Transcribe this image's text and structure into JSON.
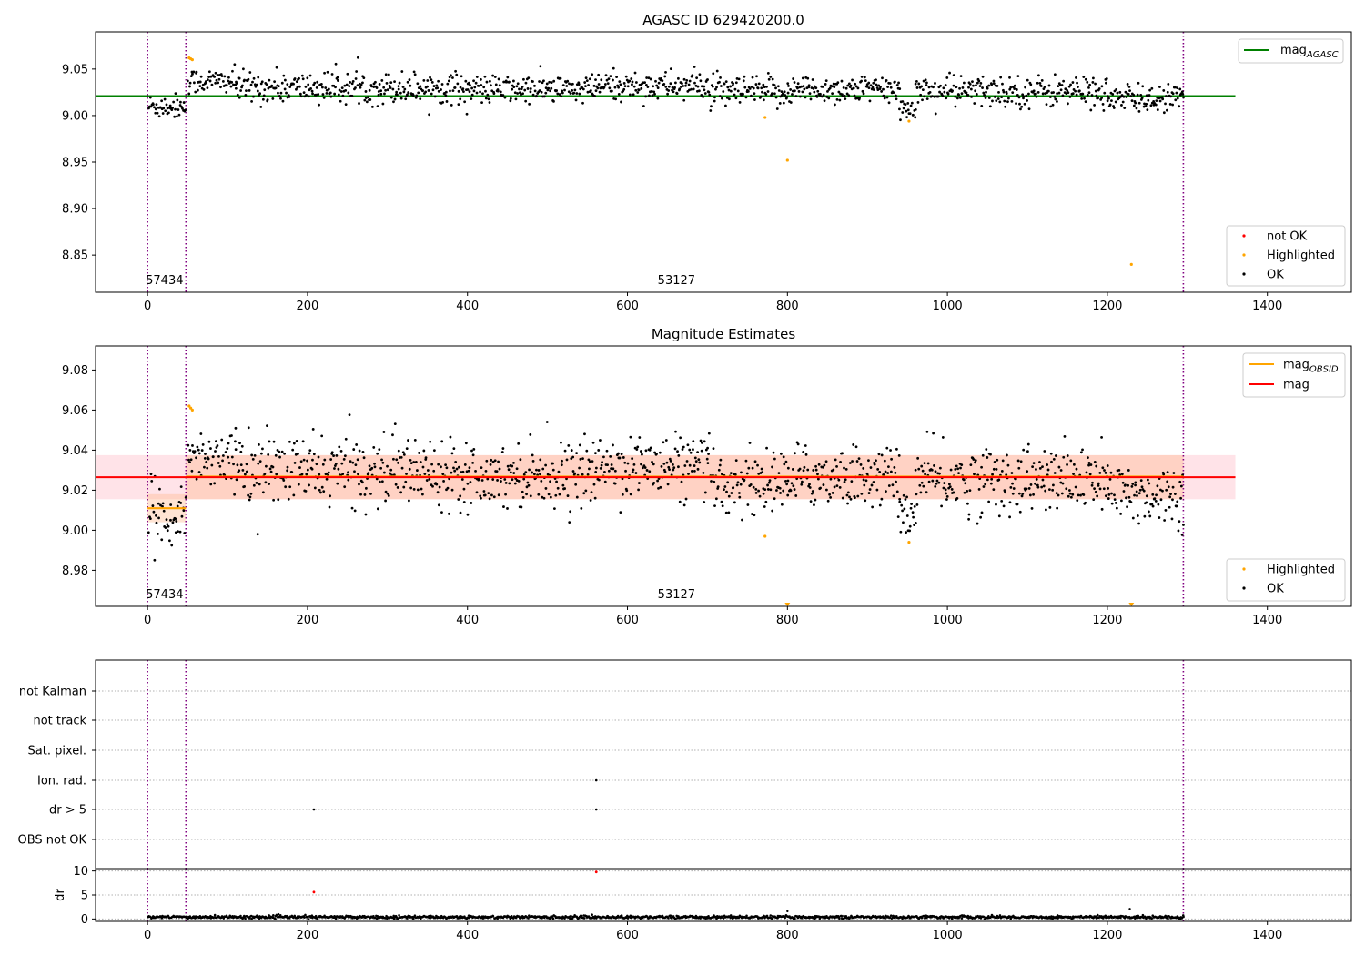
{
  "colors": {
    "ok": "#000000",
    "highlighted": "#ffa500",
    "not_ok": "#ff0000",
    "mag_agasc": "#008000",
    "mag": "#ff0000",
    "mag_obsid": "#ffa500",
    "band_mag": "#ffc0cb",
    "band_obsid": "#ffb380",
    "obs_boundary": "#800080",
    "grid": "#b0b0b0"
  },
  "chart_data": [
    {
      "type": "scatter",
      "title": "AGASC ID 629420200.0",
      "xlim": [
        -65,
        1505
      ],
      "ylim": [
        8.81,
        9.09
      ],
      "xticks": [
        0,
        200,
        400,
        600,
        800,
        1000,
        1200,
        1400
      ],
      "yticks": [
        8.85,
        8.9,
        8.95,
        9.0,
        9.05
      ],
      "ytick_labels": [
        "8.85",
        "8.90",
        "8.95",
        "9.00",
        "9.05"
      ],
      "obs_boundaries": [
        0,
        48,
        1295
      ],
      "obs_labels": [
        {
          "text": "57434",
          "x": 0
        },
        {
          "text": "53127",
          "x": 640
        }
      ],
      "mag_agasc": 9.021,
      "mag_agasc_xrange": [
        -65,
        1360
      ],
      "series": [
        {
          "name": "not OK",
          "points": []
        },
        {
          "name": "Highlighted",
          "points": [
            [
              52,
              9.062
            ],
            [
              54,
              9.061
            ],
            [
              56,
              9.06
            ],
            [
              772,
              8.998
            ],
            [
              800,
              8.952
            ],
            [
              952,
              8.994
            ],
            [
              1230,
              8.84
            ]
          ]
        },
        {
          "name": "OK",
          "segments": [
            {
              "x": [
                1,
                47
              ],
              "center": 9.01,
              "scatter": 0.008
            },
            {
              "x": [
                50,
                110
              ],
              "center": 9.037,
              "scatter": 0.008
            },
            {
              "x": [
                110,
                400
              ],
              "center": 9.03,
              "scatter": 0.01
            },
            {
              "x": [
                400,
                560
              ],
              "center": 9.028,
              "scatter": 0.009
            },
            {
              "x": [
                560,
                700
              ],
              "center": 9.032,
              "scatter": 0.009
            },
            {
              "x": [
                700,
                800
              ],
              "center": 9.025,
              "scatter": 0.01
            },
            {
              "x": [
                800,
                940
              ],
              "center": 9.028,
              "scatter": 0.009
            },
            {
              "x": [
                940,
                960
              ],
              "center": 9.008,
              "scatter": 0.006
            },
            {
              "x": [
                960,
                1200
              ],
              "center": 9.026,
              "scatter": 0.01
            },
            {
              "x": [
                1200,
                1295
              ],
              "center": 9.018,
              "scatter": 0.009
            }
          ]
        }
      ],
      "legend_lines": [
        {
          "label": "mag",
          "sub": "AGASC",
          "color_key": "mag_agasc"
        }
      ],
      "legend_points": [
        {
          "label": "not OK",
          "color_key": "not_ok"
        },
        {
          "label": "Highlighted",
          "color_key": "highlighted"
        },
        {
          "label": "OK",
          "color_key": "ok"
        }
      ]
    },
    {
      "type": "scatter",
      "title": "Magnitude Estimates",
      "xlim": [
        -65,
        1505
      ],
      "ylim": [
        8.962,
        9.092
      ],
      "xticks": [
        0,
        200,
        400,
        600,
        800,
        1000,
        1200,
        1400
      ],
      "yticks": [
        8.98,
        9.0,
        9.02,
        9.04,
        9.06,
        9.08
      ],
      "ytick_labels": [
        "8.98",
        "9.00",
        "9.02",
        "9.04",
        "9.06",
        "9.08"
      ],
      "obs_boundaries": [
        0,
        48,
        1295
      ],
      "obs_labels": [
        {
          "text": "57434",
          "x": 0
        },
        {
          "text": "53127",
          "x": 640
        }
      ],
      "mag": 9.0265,
      "mag_band": [
        9.0155,
        9.0375
      ],
      "mag_xrange": [
        -65,
        1360
      ],
      "mag_obsid": [
        {
          "x": [
            0,
            48
          ],
          "value": 9.011,
          "band": [
            9.004,
            9.018
          ]
        },
        {
          "x": [
            48,
            1295
          ],
          "value": 9.0268,
          "band": [
            9.0155,
            9.0375
          ]
        }
      ],
      "series": [
        {
          "name": "Highlighted",
          "points": [
            [
              52,
              9.062
            ],
            [
              54,
              9.061
            ],
            [
              56,
              9.06
            ],
            [
              772,
              8.997
            ],
            [
              952,
              8.994
            ]
          ]
        },
        {
          "name": "Highlighted (clipped)",
          "points": [
            [
              800,
              8.962
            ],
            [
              1230,
              8.962
            ]
          ]
        },
        {
          "name": "OK",
          "segments": [
            {
              "x": [
                1,
                47
              ],
              "center": 9.008,
              "scatter": 0.009
            },
            {
              "x": [
                50,
                110
              ],
              "center": 9.037,
              "scatter": 0.008
            },
            {
              "x": [
                110,
                400
              ],
              "center": 9.03,
              "scatter": 0.01
            },
            {
              "x": [
                400,
                560
              ],
              "center": 9.028,
              "scatter": 0.009
            },
            {
              "x": [
                560,
                700
              ],
              "center": 9.032,
              "scatter": 0.009
            },
            {
              "x": [
                700,
                800
              ],
              "center": 9.024,
              "scatter": 0.01
            },
            {
              "x": [
                800,
                940
              ],
              "center": 9.027,
              "scatter": 0.009
            },
            {
              "x": [
                940,
                960
              ],
              "center": 9.008,
              "scatter": 0.006
            },
            {
              "x": [
                960,
                1200
              ],
              "center": 9.025,
              "scatter": 0.01
            },
            {
              "x": [
                1200,
                1295
              ],
              "center": 9.018,
              "scatter": 0.009
            }
          ]
        }
      ],
      "legend_lines": [
        {
          "label": "mag",
          "sub": "OBSID",
          "color_key": "mag_obsid"
        },
        {
          "label": "mag",
          "sub": "",
          "color_key": "mag"
        }
      ],
      "legend_points": [
        {
          "label": "Highlighted",
          "color_key": "highlighted"
        },
        {
          "label": "OK",
          "color_key": "ok"
        }
      ]
    },
    {
      "type": "scatter",
      "xlim": [
        -65,
        1505
      ],
      "flags": [
        "not Kalman",
        "not track",
        "Sat. pixel.",
        "Ion. rad.",
        "dr > 5",
        "OBS not OK"
      ],
      "flag_points": [
        {
          "flag": "Ion. rad.",
          "x": 561
        },
        {
          "flag": "dr > 5",
          "x": 208
        },
        {
          "flag": "dr > 5",
          "x": 561
        }
      ],
      "obs_boundaries": [
        0,
        48,
        1295
      ]
    },
    {
      "type": "scatter",
      "ylabel": "dr",
      "xlim": [
        -65,
        1505
      ],
      "ylim": [
        -0.5,
        10.5
      ],
      "xticks": [
        0,
        200,
        400,
        600,
        800,
        1000,
        1200,
        1400
      ],
      "yticks": [
        0,
        5,
        10
      ],
      "ytick_labels": [
        "0",
        "5",
        "10"
      ],
      "obs_boundaries": [
        0,
        48,
        1295
      ],
      "baseline": {
        "x": [
          0,
          1295
        ],
        "center": 0.4,
        "scatter": 0.25
      },
      "not_ok_points": [
        [
          208,
          5.6
        ],
        [
          561,
          9.8
        ]
      ],
      "ok_points": [
        [
          800,
          1.6
        ],
        [
          1228,
          2.1
        ]
      ]
    }
  ]
}
